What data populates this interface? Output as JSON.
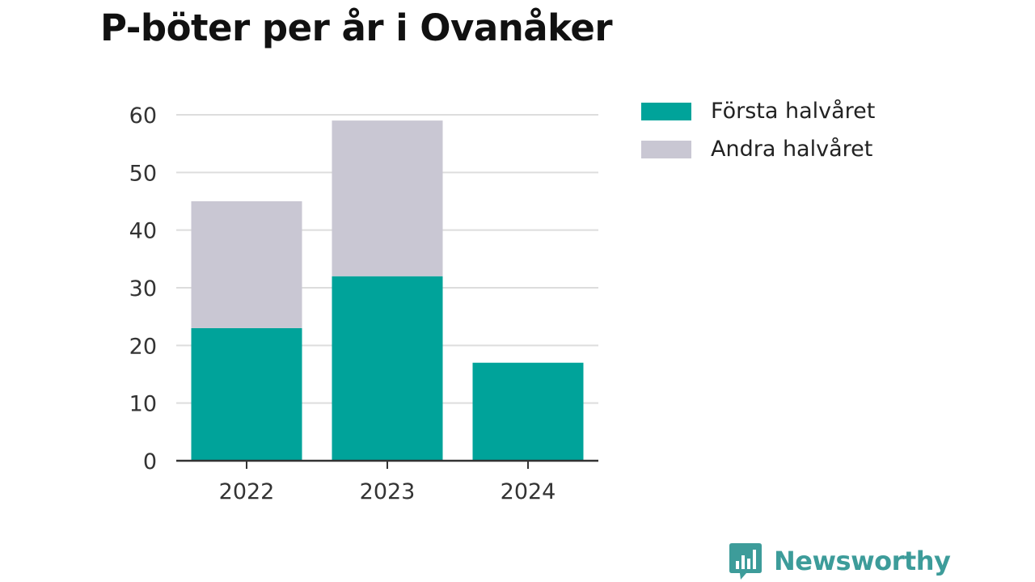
{
  "title": "P-böter per år i Ovanåker",
  "chart_data": {
    "type": "bar",
    "stacked": true,
    "categories": [
      "2022",
      "2023",
      "2024"
    ],
    "series": [
      {
        "name": "Första halvåret",
        "values": [
          23,
          32,
          17
        ],
        "color": "#00a39a"
      },
      {
        "name": "Andra halvåret",
        "values": [
          22,
          27,
          0
        ],
        "color": "#c9c7d3"
      }
    ],
    "ylim": [
      0,
      60
    ],
    "yticks": [
      0,
      10,
      20,
      30,
      40,
      50,
      60
    ],
    "grid": true,
    "legend": "right"
  },
  "legend": {
    "items": [
      {
        "label": "Första halvåret",
        "color": "#00a39a"
      },
      {
        "label": "Andra halvåret",
        "color": "#c9c7d3"
      }
    ]
  },
  "brand": {
    "name": "Newsworthy",
    "icon": "newsworthy-logo-icon",
    "color": "#3d9c9a"
  }
}
